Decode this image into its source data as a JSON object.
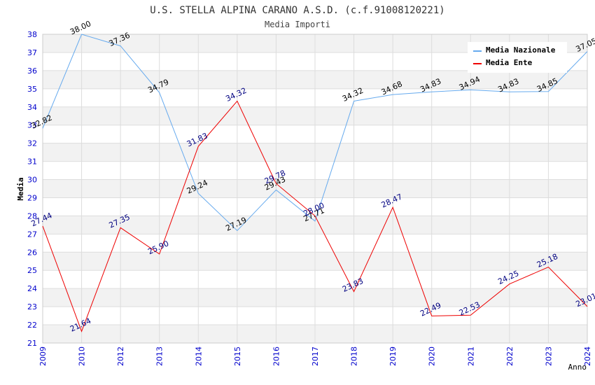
{
  "chart_data": {
    "type": "line",
    "title": "U.S. STELLA ALPINA CARANO A.S.D. (c.f.91008120221)",
    "subtitle": "Media Importi",
    "xlabel": "Anno",
    "ylabel": "Media",
    "ylim": [
      21,
      38
    ],
    "grid": true,
    "legend_position": "top-right",
    "categories": [
      "2009",
      "2010",
      "2012",
      "2013",
      "2014",
      "2015",
      "2016",
      "2017",
      "2018",
      "2019",
      "2020",
      "2021",
      "2022",
      "2023",
      "2024"
    ],
    "series": [
      {
        "name": "Media Nazionale",
        "color": "#66aaee",
        "values": [
          32.82,
          38.0,
          37.36,
          34.79,
          29.24,
          27.19,
          29.43,
          27.71,
          34.32,
          34.68,
          34.83,
          34.94,
          34.83,
          34.85,
          37.05
        ],
        "labels": [
          "32.82",
          "38.00",
          "37.36",
          "34.79",
          "29.24",
          "27.19",
          "29.43",
          "27.71",
          "34.32",
          "34.68",
          "34.83",
          "34.94",
          "34.83",
          "34.85",
          "37.05"
        ]
      },
      {
        "name": "Media Ente",
        "color": "#ee0000",
        "values": [
          27.44,
          21.64,
          27.35,
          25.9,
          31.83,
          34.32,
          29.78,
          28.0,
          23.83,
          28.47,
          22.49,
          22.53,
          24.25,
          25.18,
          23.01
        ],
        "labels": [
          "27.44",
          "21.64",
          "27.35",
          "25.90",
          "31.83",
          "34.32",
          "29.78",
          "28.00",
          "23.83",
          "28.47",
          "22.49",
          "22.53",
          "24.25",
          "25.18",
          "23.01"
        ]
      }
    ]
  }
}
